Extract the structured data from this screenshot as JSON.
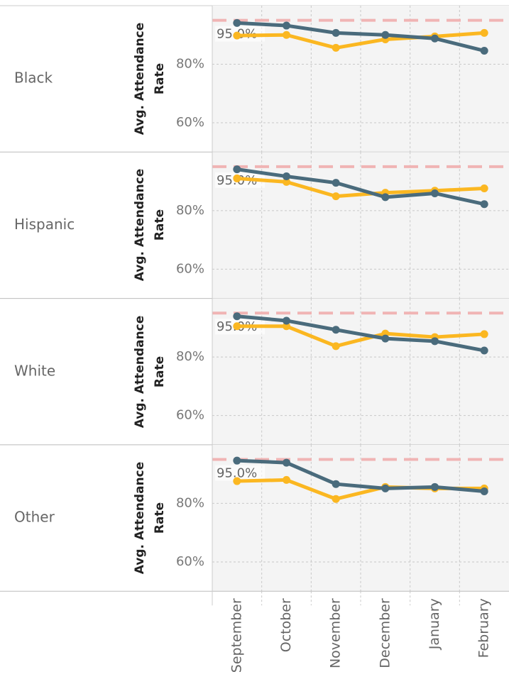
{
  "chart_data": {
    "type": "line",
    "grid": true,
    "categories": [
      "September",
      "October",
      "November",
      "December",
      "January",
      "February"
    ],
    "panels": [
      {
        "name": "Black",
        "ylabel": "Avg. Attendance Rate",
        "ylim": [
          50,
          100
        ],
        "yticks": [
          {
            "value": 60,
            "label": "60%"
          },
          {
            "value": 80,
            "label": "80%"
          }
        ],
        "reference": {
          "value": 95,
          "label": "95.0%"
        },
        "series": [
          {
            "color": "#fbb721",
            "values": [
              89.8,
              90,
              85.6,
              88.5,
              89.5,
              90.7
            ]
          },
          {
            "color": "#4a6b7c",
            "values": [
              94.1,
              93.2,
              90.7,
              90,
              88.8,
              84.6
            ]
          }
        ]
      },
      {
        "name": "Hispanic",
        "ylabel": "Avg. Attendance Rate",
        "ylim": [
          50,
          100
        ],
        "yticks": [
          {
            "value": 60,
            "label": "60%"
          },
          {
            "value": 80,
            "label": "80%"
          }
        ],
        "reference": {
          "value": 95,
          "label": "95.0%"
        },
        "series": [
          {
            "color": "#fbb721",
            "values": [
              91,
              89.8,
              84.9,
              86.1,
              86.8,
              87.6
            ]
          },
          {
            "color": "#4a6b7c",
            "values": [
              94.1,
              91.7,
              89.5,
              84.6,
              85.9,
              82.2
            ]
          }
        ]
      },
      {
        "name": "White",
        "ylabel": "Avg. Attendance Rate",
        "ylim": [
          50,
          100
        ],
        "yticks": [
          {
            "value": 60,
            "label": "60%"
          },
          {
            "value": 80,
            "label": "80%"
          }
        ],
        "reference": {
          "value": 95,
          "label": "95.0%"
        },
        "series": [
          {
            "color": "#fbb721",
            "values": [
              90.5,
              90.5,
              83.7,
              88,
              86.8,
              87.8
            ]
          },
          {
            "color": "#4a6b7c",
            "values": [
              93.9,
              92.4,
              89.3,
              86.3,
              85.4,
              82.2
            ]
          }
        ]
      },
      {
        "name": "Other",
        "ylabel": "Avg. Attendance Rate",
        "ylim": [
          50,
          100
        ],
        "yticks": [
          {
            "value": 60,
            "label": "60%"
          },
          {
            "value": 80,
            "label": "80%"
          }
        ],
        "reference": {
          "value": 95,
          "label": "95.0%"
        },
        "series": [
          {
            "color": "#fbb721",
            "values": [
              87.6,
              88,
              81.5,
              85.6,
              85.1,
              85.1
            ]
          },
          {
            "color": "#4a6b7c",
            "values": [
              94.6,
              93.9,
              86.6,
              85.1,
              85.6,
              84.1
            ]
          }
        ]
      }
    ]
  }
}
